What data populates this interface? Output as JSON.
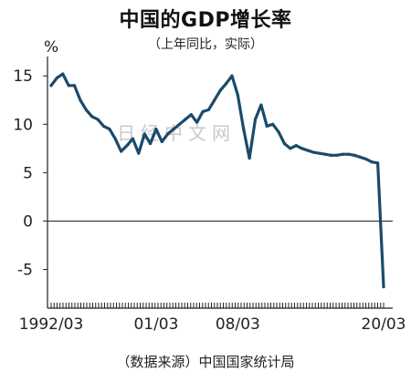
{
  "chart_data": {
    "type": "line",
    "title": "中国的GDP增长率",
    "subtitle": "（上年同比，实际）",
    "ylabel": "%",
    "source": "（数据来源）中国国家统计局",
    "watermark": "日经中文网",
    "ylim": [
      -9,
      17
    ],
    "yticks": [
      15,
      10,
      5,
      0,
      -5
    ],
    "xticks": [
      "1992/03",
      "01/03",
      "08/03",
      "20/03"
    ],
    "x": [
      "1992/03",
      "1992/09",
      "1993/03",
      "1993/09",
      "1994/03",
      "1994/09",
      "1995/03",
      "1995/09",
      "1996/03",
      "1996/09",
      "1997/03",
      "1997/09",
      "1998/03",
      "1998/09",
      "1999/03",
      "1999/09",
      "2000/03",
      "2000/09",
      "2001/03",
      "2001/09",
      "2002/03",
      "2002/09",
      "2003/03",
      "2003/09",
      "2004/03",
      "2004/09",
      "2005/03",
      "2005/09",
      "2006/03",
      "2006/09",
      "2007/03",
      "2007/09",
      "2008/03",
      "2008/09",
      "2009/03",
      "2009/09",
      "2010/03",
      "2010/09",
      "2011/03",
      "2011/09",
      "2012/03",
      "2012/09",
      "2013/03",
      "2013/09",
      "2014/03",
      "2014/09",
      "2015/03",
      "2015/09",
      "2016/03",
      "2016/09",
      "2017/03",
      "2017/09",
      "2018/03",
      "2018/09",
      "2019/03",
      "2019/09",
      "2019/12",
      "2020/03"
    ],
    "series": [
      {
        "color": "#1b4a6b",
        "values": [
          14.0,
          14.8,
          15.2,
          14.0,
          14.0,
          12.5,
          11.5,
          10.8,
          10.5,
          9.8,
          9.5,
          8.5,
          7.2,
          7.8,
          8.5,
          7.0,
          9.0,
          8.0,
          9.5,
          8.2,
          9.0,
          9.5,
          10.0,
          10.5,
          11.0,
          10.2,
          11.3,
          11.5,
          12.5,
          13.5,
          14.2,
          15.0,
          13.0,
          9.5,
          6.5,
          10.5,
          12.0,
          9.8,
          10.0,
          9.2,
          8.0,
          7.5,
          7.8,
          7.5,
          7.3,
          7.1,
          7.0,
          6.9,
          6.8,
          6.8,
          6.9,
          6.9,
          6.8,
          6.6,
          6.4,
          6.1,
          6.0,
          -6.8
        ]
      }
    ],
    "baseline": 0,
    "grid": false
  }
}
